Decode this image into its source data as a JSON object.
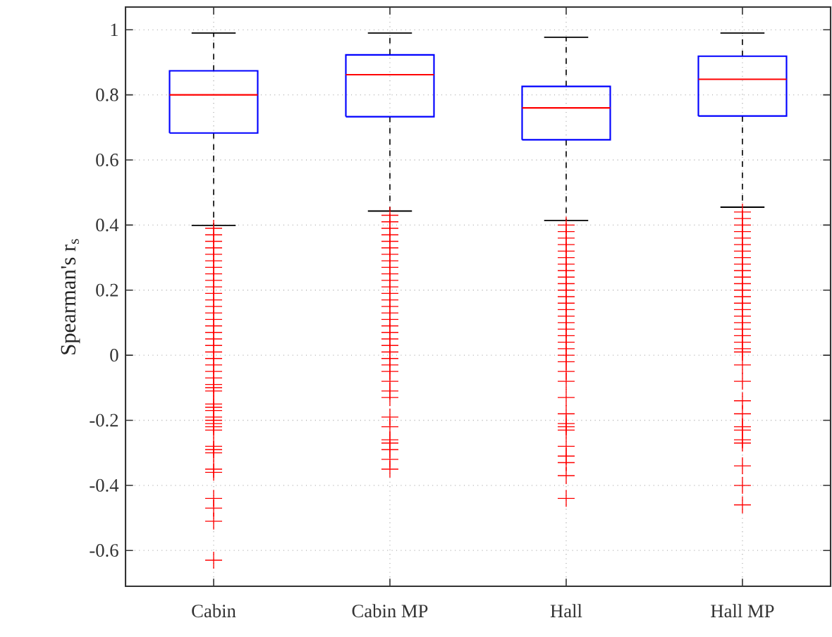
{
  "chart_data": {
    "type": "box",
    "ylabel": "Spearman's r$_{s}$",
    "categories": [
      "Cabin",
      "Cabin MP",
      "Hall",
      "Hall MP"
    ],
    "ylim": [
      -0.71,
      1.07
    ],
    "yticks": [
      -0.6,
      -0.4,
      -0.2,
      0,
      0.2,
      0.4,
      0.6,
      0.8,
      1
    ],
    "grid": true,
    "marker": "cross",
    "series": [
      {
        "color": "#0000ff",
        "boxes": [
          {
            "low": 0.399,
            "q1": 0.683,
            "median": 0.8,
            "q3": 0.874,
            "high": 0.99,
            "outliers": [
              0.39,
              0.37,
              0.35,
              0.33,
              0.31,
              0.29,
              0.27,
              0.25,
              0.23,
              0.21,
              0.19,
              0.17,
              0.15,
              0.13,
              0.11,
              0.09,
              0.07,
              0.05,
              0.03,
              0.01,
              -0.01,
              -0.03,
              -0.05,
              -0.07,
              -0.09,
              -0.1,
              -0.11,
              -0.15,
              -0.16,
              -0.17,
              -0.19,
              -0.2,
              -0.21,
              -0.22,
              -0.23,
              -0.28,
              -0.29,
              -0.3,
              -0.35,
              -0.36,
              -0.44,
              -0.47,
              -0.51,
              -0.63
            ]
          },
          {
            "low": 0.443,
            "q1": 0.733,
            "median": 0.862,
            "q3": 0.923,
            "high": 0.99,
            "outliers": [
              0.43,
              0.41,
              0.39,
              0.37,
              0.35,
              0.33,
              0.31,
              0.29,
              0.27,
              0.25,
              0.23,
              0.21,
              0.19,
              0.17,
              0.15,
              0.13,
              0.11,
              0.09,
              0.07,
              0.05,
              0.03,
              0.01,
              -0.01,
              -0.03,
              -0.05,
              -0.08,
              -0.11,
              -0.13,
              -0.19,
              -0.22,
              -0.26,
              -0.27,
              -0.29,
              -0.32,
              -0.35
            ]
          },
          {
            "low": 0.414,
            "q1": 0.662,
            "median": 0.76,
            "q3": 0.826,
            "high": 0.977,
            "outliers": [
              0.4,
              0.38,
              0.36,
              0.34,
              0.32,
              0.3,
              0.28,
              0.26,
              0.24,
              0.22,
              0.2,
              0.18,
              0.16,
              0.14,
              0.12,
              0.1,
              0.08,
              0.06,
              0.04,
              0.02,
              0.0,
              -0.02,
              -0.05,
              -0.08,
              -0.13,
              -0.18,
              -0.21,
              -0.22,
              -0.23,
              -0.28,
              -0.31,
              -0.33,
              -0.37,
              -0.44
            ]
          },
          {
            "low": 0.455,
            "q1": 0.735,
            "median": 0.848,
            "q3": 0.919,
            "high": 0.99,
            "outliers": [
              0.44,
              0.42,
              0.4,
              0.38,
              0.36,
              0.34,
              0.32,
              0.3,
              0.28,
              0.26,
              0.24,
              0.22,
              0.2,
              0.18,
              0.16,
              0.14,
              0.12,
              0.1,
              0.08,
              0.06,
              0.04,
              0.02,
              0.01,
              -0.03,
              -0.08,
              -0.14,
              -0.18,
              -0.22,
              -0.23,
              -0.26,
              -0.27,
              -0.34,
              -0.4,
              -0.46
            ]
          }
        ]
      }
    ]
  }
}
